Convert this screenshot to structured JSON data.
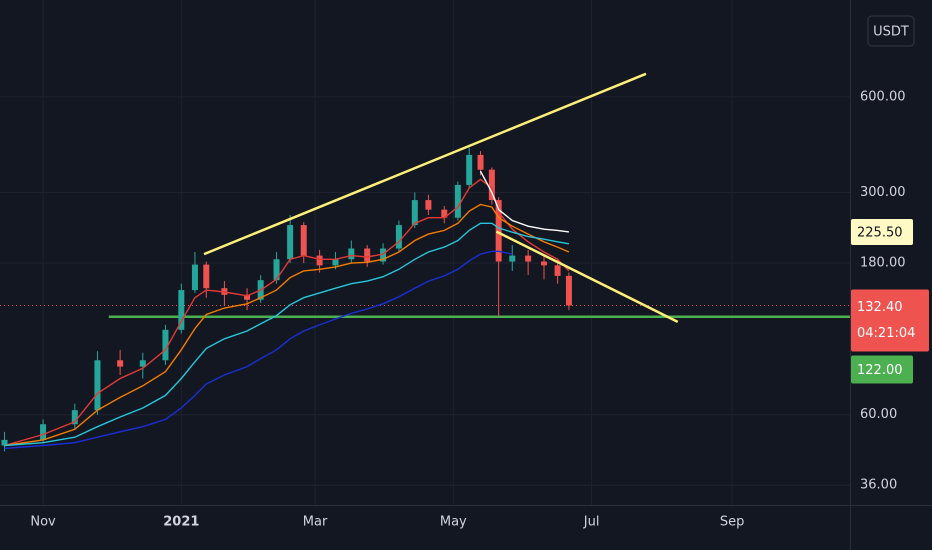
{
  "chart_data": {
    "type": "candlestick",
    "currency": "USDT",
    "log_scale": true,
    "grid": true,
    "xlim": [
      "2020-10-13",
      "2021-10-23"
    ],
    "ylim": [
      31.2,
      1210
    ],
    "xticks": [
      {
        "value": "2020-11-01",
        "label": "Nov"
      },
      {
        "value": "2021-01-01",
        "label": "2021"
      },
      {
        "value": "2021-03-01",
        "label": "Mar"
      },
      {
        "value": "2021-05-01",
        "label": "May"
      },
      {
        "value": "2021-07-01",
        "label": "Jul"
      },
      {
        "value": "2021-09-01",
        "label": "Sep"
      }
    ],
    "yticks": [
      {
        "value": 36,
        "label": "36.00"
      },
      {
        "value": 60,
        "label": "60.00"
      },
      {
        "value": 180,
        "label": "180.00"
      },
      {
        "value": 300,
        "label": "300.00"
      },
      {
        "value": 600,
        "label": "600.00"
      }
    ],
    "up_color": "#26a69a",
    "down_color": "#ef5350",
    "x": [
      "2020-10-15",
      "2020-11-01",
      "2020-11-15",
      "2020-11-25",
      "2020-12-05",
      "2020-12-15",
      "2020-12-25",
      "2021-01-01",
      "2021-01-07",
      "2021-01-12",
      "2021-01-20",
      "2021-01-30",
      "2021-02-05",
      "2021-02-12",
      "2021-02-18",
      "2021-02-24",
      "2021-03-03",
      "2021-03-10",
      "2021-03-17",
      "2021-03-24",
      "2021-03-31",
      "2021-04-07",
      "2021-04-14",
      "2021-04-20",
      "2021-04-27",
      "2021-05-03",
      "2021-05-08",
      "2021-05-13",
      "2021-05-18",
      "2021-05-21",
      "2021-05-27",
      "2021-06-03",
      "2021-06-10",
      "2021-06-16",
      "2021-06-21"
    ],
    "open": [
      48,
      50,
      56,
      62,
      89,
      85,
      89,
      111,
      148,
      178,
      150,
      143,
      138,
      159,
      185,
      237,
      190,
      177,
      185,
      200,
      182,
      200,
      237,
      284,
      265,
      250,
      317,
      394,
      354,
      284,
      182,
      190,
      182,
      177,
      164
    ],
    "high": [
      53,
      58,
      65,
      95,
      96,
      94,
      115,
      155,
      195,
      182,
      158,
      150,
      165,
      195,
      255,
      242,
      198,
      195,
      212,
      205,
      208,
      245,
      300,
      295,
      272,
      325,
      415,
      405,
      360,
      290,
      205,
      198,
      190,
      185,
      168
    ],
    "low": [
      46,
      49,
      54,
      60,
      80,
      78,
      86,
      108,
      145,
      140,
      132,
      128,
      135,
      155,
      180,
      180,
      168,
      172,
      180,
      175,
      178,
      195,
      232,
      255,
      240,
      245,
      310,
      340,
      275,
      122,
      170,
      165,
      160,
      155,
      128
    ],
    "close": [
      50,
      56,
      62,
      89,
      85,
      89,
      111,
      148,
      178,
      150,
      143,
      138,
      159,
      185,
      237,
      190,
      177,
      185,
      200,
      182,
      200,
      237,
      284,
      265,
      250,
      317,
      394,
      354,
      284,
      182,
      190,
      182,
      177,
      164,
      132.4
    ],
    "series": [
      {
        "color": "#e53935",
        "values": [
          48,
          52,
          57,
          70,
          78,
          84,
          96,
          118,
          140,
          148,
          146,
          142,
          148,
          160,
          185,
          190,
          185,
          185,
          190,
          188,
          192,
          210,
          240,
          250,
          250,
          270,
          310,
          330,
          310,
          260,
          230,
          210,
          195,
          185,
          170
        ]
      },
      {
        "color": "#f57c00",
        "values": [
          48,
          50,
          54,
          62,
          68,
          74,
          82,
          96,
          112,
          124,
          130,
          134,
          140,
          148,
          162,
          170,
          172,
          175,
          180,
          181,
          185,
          195,
          212,
          222,
          228,
          240,
          262,
          275,
          270,
          250,
          235,
          222,
          210,
          202,
          195
        ]
      },
      {
        "color": "#26c6da",
        "values": [
          48,
          49,
          51,
          55,
          59,
          63,
          69,
          78,
          88,
          97,
          104,
          110,
          116,
          123,
          133,
          140,
          145,
          150,
          155,
          158,
          163,
          172,
          185,
          195,
          202,
          212,
          228,
          240,
          240,
          232,
          225,
          218,
          214,
          210,
          207
        ]
      },
      {
        "color": "#1a2fd8",
        "values": [
          47,
          48,
          49,
          51,
          53,
          55,
          58,
          63,
          69,
          75,
          80,
          85,
          90,
          96,
          104,
          110,
          115,
          120,
          125,
          129,
          134,
          141,
          150,
          158,
          164,
          172,
          183,
          192,
          196,
          196,
          192,
          null,
          null,
          null,
          null
        ]
      },
      {
        "color": "#ffffff",
        "values": [
          null,
          null,
          null,
          null,
          null,
          null,
          null,
          null,
          null,
          null,
          null,
          null,
          null,
          null,
          null,
          null,
          null,
          null,
          null,
          null,
          null,
          null,
          null,
          null,
          null,
          null,
          null,
          350,
          300,
          265,
          245,
          235,
          230,
          228,
          225.5
        ]
      }
    ],
    "trend_lines": [
      {
        "color": "#ffee77",
        "start": [
          "2021-01-11",
          192
        ],
        "end": [
          "2021-07-25",
          709
        ]
      },
      {
        "color": "#ffee77",
        "start": [
          "2021-05-20",
          226
        ],
        "end": [
          "2021-08-08",
          117.6
        ]
      }
    ],
    "horizontal_line": {
      "color": "#4caf50",
      "start": "2020-11-30",
      "value": 122,
      "label": "122.00"
    },
    "last_price": {
      "value": 132.4,
      "label": "132.40",
      "countdown": "04:21:04",
      "color": "#ef5350"
    },
    "ma_label": {
      "value": 225.5,
      "label": "225.50",
      "color": "#fff9c4"
    }
  }
}
